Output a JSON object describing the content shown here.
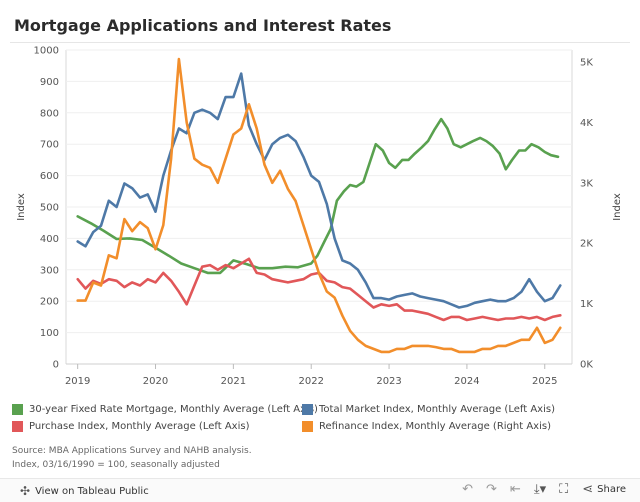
{
  "header": {
    "title": "Mortgage Applications and Interest Rates"
  },
  "chart_data": {
    "type": "line",
    "x_ticks": [
      "2019",
      "2020",
      "2021",
      "2022",
      "2023",
      "2024",
      "2025"
    ],
    "x_range": [
      2018.85,
      2025.35
    ],
    "y_left": {
      "label": "Index",
      "range": [
        0,
        1000
      ],
      "ticks": [
        "0",
        "100",
        "200",
        "300",
        "400",
        "500",
        "600",
        "700",
        "800",
        "900",
        "1000"
      ]
    },
    "y_right": {
      "label": "Index",
      "range": [
        0,
        5200
      ],
      "ticks": [
        "0K",
        "1K",
        "2K",
        "3K",
        "4K",
        "5K"
      ]
    },
    "grid": true,
    "legend_position": "bottom",
    "series": [
      {
        "name": "30-year Fixed Rate Mortgage, Monthly Average (Left Axis)",
        "axis": "left",
        "color": "#59a14f",
        "x": [
          2019.0,
          2019.17,
          2019.33,
          2019.5,
          2019.67,
          2019.83,
          2020.0,
          2020.17,
          2020.33,
          2020.5,
          2020.67,
          2020.83,
          2021.0,
          2021.17,
          2021.33,
          2021.5,
          2021.67,
          2021.83,
          2022.0,
          2022.08,
          2022.17,
          2022.25,
          2022.33,
          2022.42,
          2022.5,
          2022.58,
          2022.67,
          2022.75,
          2022.83,
          2022.92,
          2023.0,
          2023.08,
          2023.17,
          2023.25,
          2023.33,
          2023.42,
          2023.5,
          2023.58,
          2023.67,
          2023.75,
          2023.83,
          2023.92,
          2024.0,
          2024.08,
          2024.17,
          2024.25,
          2024.33,
          2024.42,
          2024.5,
          2024.58,
          2024.67,
          2024.75,
          2024.83,
          2024.92,
          2025.0,
          2025.08,
          2025.17
        ],
        "y": [
          470,
          448,
          425,
          398,
          400,
          395,
          370,
          345,
          320,
          305,
          290,
          290,
          330,
          318,
          305,
          305,
          310,
          308,
          320,
          345,
          390,
          430,
          520,
          550,
          570,
          565,
          580,
          640,
          700,
          680,
          640,
          625,
          650,
          650,
          670,
          690,
          710,
          745,
          780,
          750,
          700,
          690,
          700,
          710,
          720,
          710,
          695,
          670,
          620,
          650,
          680,
          680,
          700,
          690,
          675,
          665,
          660
        ]
      },
      {
        "name": "Total Market Index, Monthly Average (Left Axis)",
        "axis": "left",
        "color": "#4e79a7",
        "x": [
          2019.0,
          2019.1,
          2019.2,
          2019.3,
          2019.4,
          2019.5,
          2019.6,
          2019.7,
          2019.8,
          2019.9,
          2020.0,
          2020.1,
          2020.2,
          2020.3,
          2020.4,
          2020.5,
          2020.6,
          2020.7,
          2020.8,
          2020.9,
          2021.0,
          2021.1,
          2021.2,
          2021.3,
          2021.4,
          2021.5,
          2021.6,
          2021.7,
          2021.8,
          2021.9,
          2022.0,
          2022.1,
          2022.2,
          2022.3,
          2022.4,
          2022.5,
          2022.6,
          2022.7,
          2022.8,
          2022.9,
          2023.0,
          2023.1,
          2023.2,
          2023.3,
          2023.4,
          2023.5,
          2023.6,
          2023.7,
          2023.8,
          2023.9,
          2024.0,
          2024.1,
          2024.2,
          2024.3,
          2024.4,
          2024.5,
          2024.6,
          2024.7,
          2024.8,
          2024.9,
          2025.0,
          2025.1,
          2025.2
        ],
        "y": [
          390,
          375,
          420,
          440,
          520,
          500,
          575,
          560,
          530,
          540,
          485,
          600,
          680,
          750,
          735,
          800,
          810,
          800,
          780,
          850,
          850,
          925,
          760,
          700,
          650,
          700,
          720,
          730,
          710,
          660,
          600,
          580,
          510,
          400,
          330,
          320,
          300,
          260,
          210,
          210,
          205,
          215,
          220,
          225,
          215,
          210,
          205,
          200,
          190,
          180,
          185,
          195,
          200,
          205,
          200,
          200,
          210,
          230,
          270,
          230,
          200,
          210,
          250
        ]
      },
      {
        "name": "Purchase Index, Monthly Average (Left Axis)",
        "axis": "left",
        "color": "#e15759",
        "x": [
          2019.0,
          2019.1,
          2019.2,
          2019.3,
          2019.4,
          2019.5,
          2019.6,
          2019.7,
          2019.8,
          2019.9,
          2020.0,
          2020.1,
          2020.2,
          2020.3,
          2020.4,
          2020.5,
          2020.6,
          2020.7,
          2020.8,
          2020.9,
          2021.0,
          2021.1,
          2021.2,
          2021.3,
          2021.4,
          2021.5,
          2021.6,
          2021.7,
          2021.8,
          2021.9,
          2022.0,
          2022.1,
          2022.2,
          2022.3,
          2022.4,
          2022.5,
          2022.6,
          2022.7,
          2022.8,
          2022.9,
          2023.0,
          2023.1,
          2023.2,
          2023.3,
          2023.4,
          2023.5,
          2023.6,
          2023.7,
          2023.8,
          2023.9,
          2024.0,
          2024.1,
          2024.2,
          2024.3,
          2024.4,
          2024.5,
          2024.6,
          2024.7,
          2024.8,
          2024.9,
          2025.0,
          2025.1,
          2025.2
        ],
        "y": [
          270,
          240,
          265,
          255,
          270,
          265,
          245,
          260,
          250,
          270,
          260,
          290,
          265,
          230,
          190,
          250,
          310,
          315,
          300,
          315,
          305,
          320,
          335,
          290,
          285,
          270,
          265,
          260,
          265,
          270,
          285,
          290,
          265,
          260,
          245,
          240,
          220,
          200,
          180,
          190,
          185,
          190,
          170,
          170,
          165,
          160,
          150,
          140,
          150,
          150,
          140,
          145,
          150,
          145,
          140,
          145,
          145,
          150,
          145,
          150,
          140,
          150,
          155
        ]
      },
      {
        "name": "Refinance Index, Monthly Average (Right Axis)",
        "axis": "right",
        "color": "#f28e2b",
        "x": [
          2019.0,
          2019.1,
          2019.2,
          2019.3,
          2019.4,
          2019.5,
          2019.6,
          2019.7,
          2019.8,
          2019.9,
          2020.0,
          2020.1,
          2020.2,
          2020.3,
          2020.4,
          2020.5,
          2020.6,
          2020.7,
          2020.8,
          2020.9,
          2021.0,
          2021.1,
          2021.2,
          2021.3,
          2021.4,
          2021.5,
          2021.6,
          2021.7,
          2021.8,
          2021.9,
          2022.0,
          2022.1,
          2022.2,
          2022.3,
          2022.4,
          2022.5,
          2022.6,
          2022.7,
          2022.8,
          2022.9,
          2023.0,
          2023.1,
          2023.2,
          2023.3,
          2023.4,
          2023.5,
          2023.6,
          2023.7,
          2023.8,
          2023.9,
          2024.0,
          2024.1,
          2024.2,
          2024.3,
          2024.4,
          2024.5,
          2024.6,
          2024.7,
          2024.8,
          2024.9,
          2025.0,
          2025.1,
          2025.2
        ],
        "y": [
          1050,
          1050,
          1350,
          1300,
          1800,
          1750,
          2400,
          2200,
          2350,
          2250,
          1900,
          2300,
          3400,
          5050,
          4000,
          3400,
          3300,
          3250,
          3000,
          3400,
          3800,
          3900,
          4300,
          3900,
          3300,
          3000,
          3200,
          2900,
          2700,
          2300,
          1900,
          1500,
          1200,
          1100,
          800,
          550,
          400,
          300,
          250,
          200,
          200,
          250,
          250,
          300,
          300,
          300,
          280,
          250,
          250,
          200,
          200,
          200,
          250,
          250,
          300,
          300,
          350,
          400,
          400,
          600,
          350,
          400,
          600
        ]
      }
    ]
  },
  "notes": {
    "source": "Source: MBA Applications Survey and NAHB analysis.",
    "index_note": "Index, 03/16/1990 = 100, seasonally adjusted"
  },
  "footer": {
    "view_label": "View on Tableau Public",
    "share_label": "Share",
    "icons": [
      "tableau-icon",
      "undo-icon",
      "redo-icon",
      "revert-icon",
      "download-icon",
      "fullscreen-icon",
      "share-icon"
    ]
  }
}
